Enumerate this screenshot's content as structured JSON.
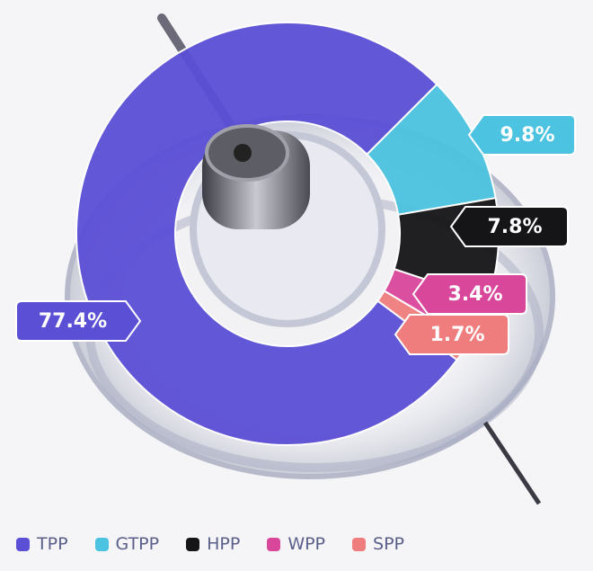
{
  "chart_data": {
    "type": "pie",
    "categories": [
      "TPP",
      "GTPP",
      "HPP",
      "WPP",
      "SPP"
    ],
    "values": [
      77.4,
      9.8,
      7.8,
      3.4,
      1.7
    ],
    "value_labels": [
      "77.4%",
      "9.8%",
      "7.8%",
      "3.4%",
      "1.7%"
    ],
    "colors": [
      "#5b4fd6",
      "#4cc3e0",
      "#151518",
      "#d9479b",
      "#ef7d7d"
    ],
    "legend": "bottom"
  }
}
